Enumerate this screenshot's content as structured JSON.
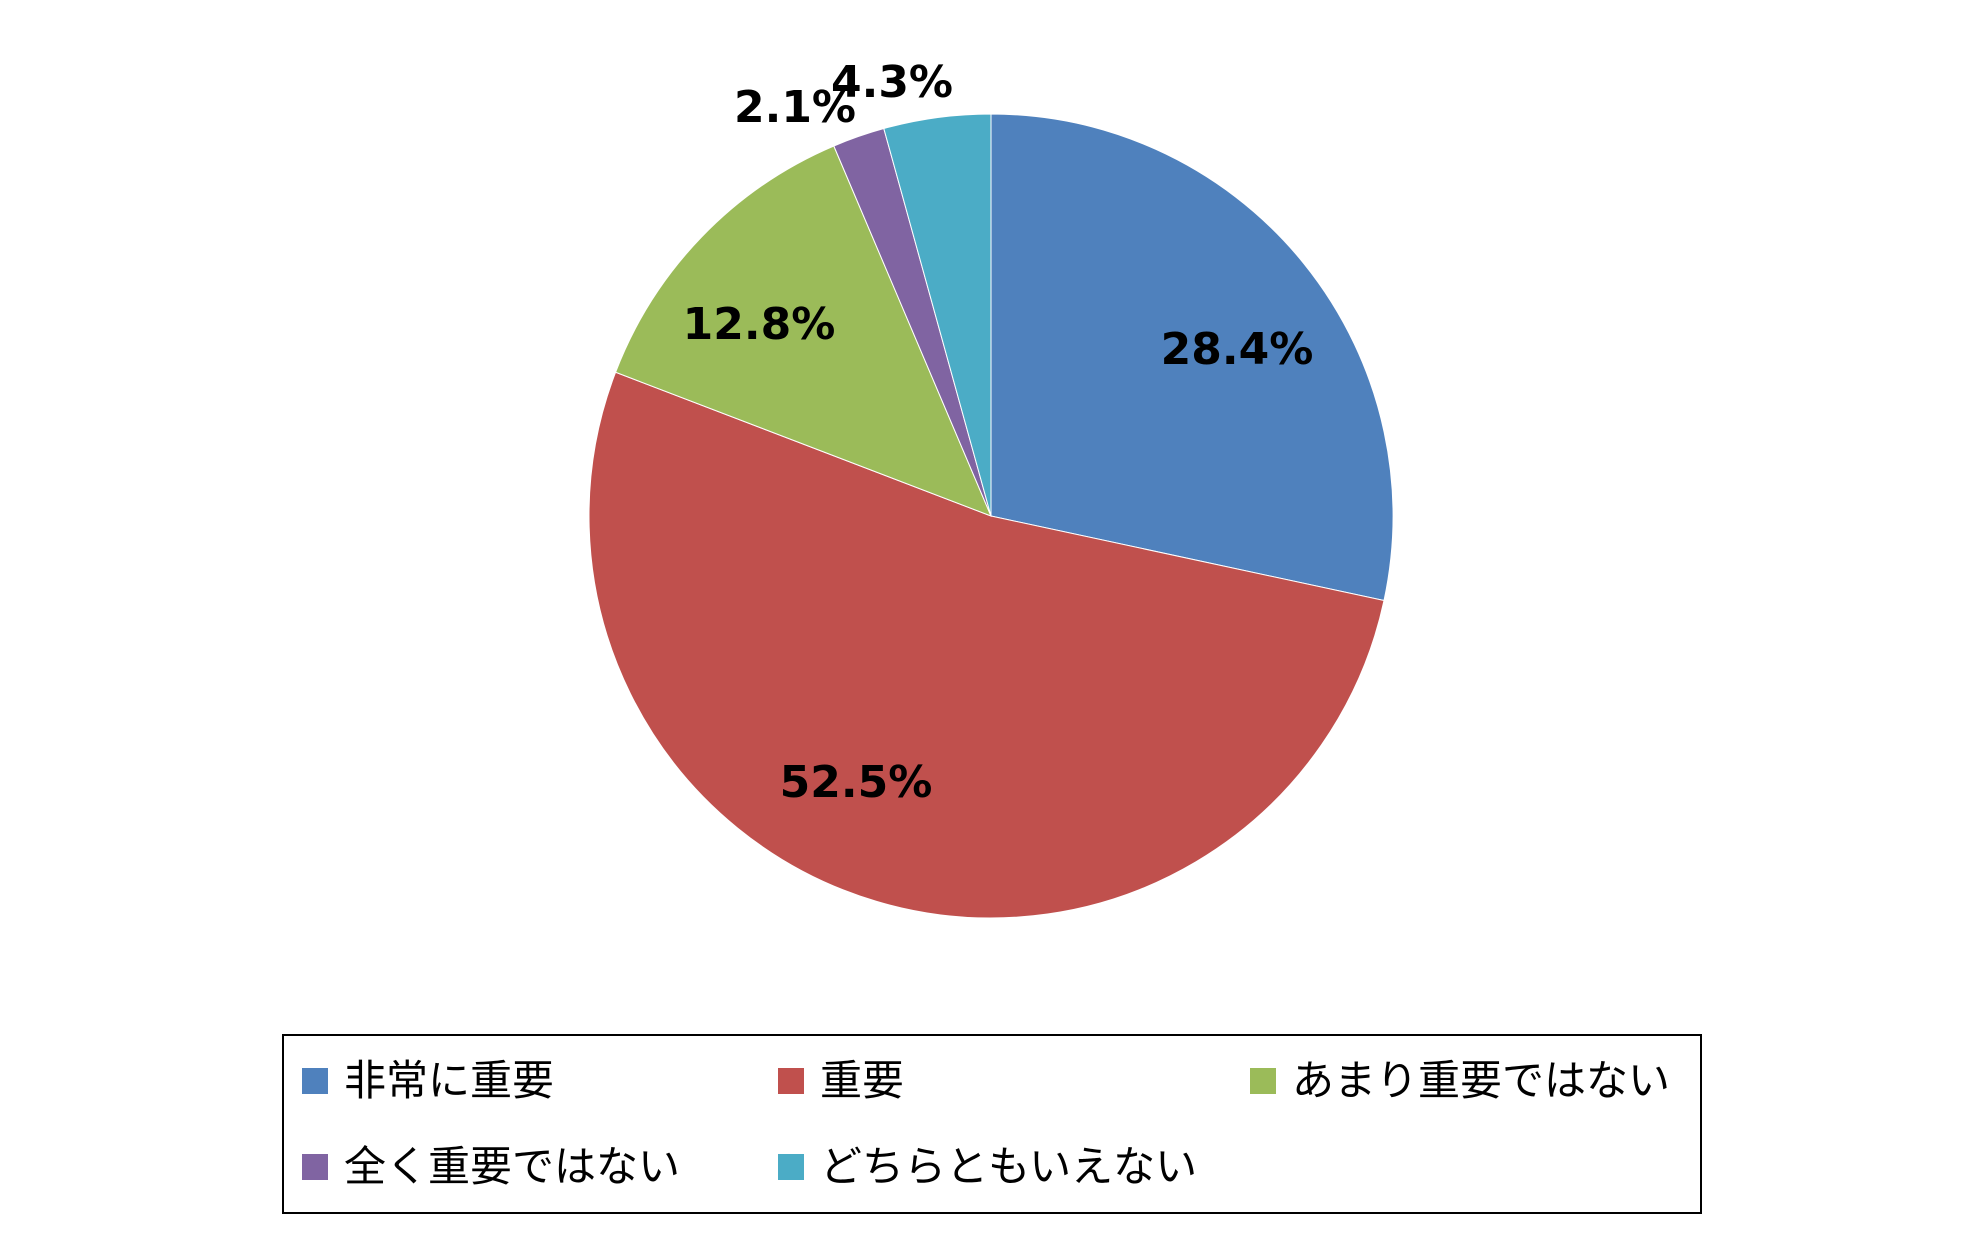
{
  "chart_data": {
    "type": "pie",
    "title": "",
    "start_angle_deg": 0,
    "direction": "clockwise",
    "legend_position": "bottom",
    "slices": [
      {
        "label": "非常に重要",
        "value": 28.4,
        "display": "28.4%",
        "color": "#4f81bd"
      },
      {
        "label": "重要",
        "value": 52.5,
        "display": "52.5%",
        "color": "#c0504d"
      },
      {
        "label": "あまり重要ではない",
        "value": 12.8,
        "display": "12.8%",
        "color": "#9bbb59"
      },
      {
        "label": "全く重要ではない",
        "value": 2.1,
        "display": "2.1%",
        "color": "#8064a2"
      },
      {
        "label": "どちらともいえない",
        "value": 4.3,
        "display": "4.3%",
        "color": "#4bacc6"
      }
    ]
  }
}
